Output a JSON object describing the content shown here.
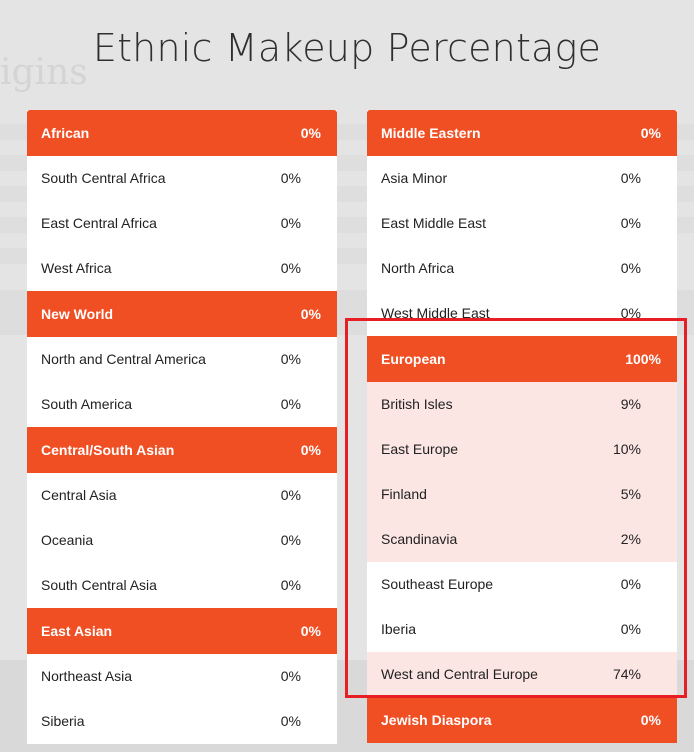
{
  "page": {
    "title": "Ethnic Makeup Percentage"
  },
  "background": {
    "ghost_heading": "igins"
  },
  "colors": {
    "accent": "#f04e23",
    "highlight_row": "#fbe6e3",
    "annotation_box": "#e81e25"
  },
  "left_column": [
    {
      "type": "header",
      "label": "African",
      "pct": "0%"
    },
    {
      "type": "item",
      "label": "South Central Africa",
      "pct": "0%"
    },
    {
      "type": "item",
      "label": "East Central Africa",
      "pct": "0%"
    },
    {
      "type": "item",
      "label": "West Africa",
      "pct": "0%"
    },
    {
      "type": "header",
      "label": "New World",
      "pct": "0%"
    },
    {
      "type": "item",
      "label": "North and Central America",
      "pct": "0%"
    },
    {
      "type": "item",
      "label": "South America",
      "pct": "0%"
    },
    {
      "type": "header",
      "label": "Central/South Asian",
      "pct": "0%"
    },
    {
      "type": "item",
      "label": "Central Asia",
      "pct": "0%"
    },
    {
      "type": "item",
      "label": "Oceania",
      "pct": "0%"
    },
    {
      "type": "item",
      "label": "South Central Asia",
      "pct": "0%"
    },
    {
      "type": "header",
      "label": "East Asian",
      "pct": "0%"
    },
    {
      "type": "item",
      "label": "Northeast Asia",
      "pct": "0%"
    },
    {
      "type": "item",
      "label": "Siberia",
      "pct": "0%"
    }
  ],
  "right_column": [
    {
      "type": "header",
      "label": "Middle Eastern",
      "pct": "0%"
    },
    {
      "type": "item",
      "label": "Asia Minor",
      "pct": "0%"
    },
    {
      "type": "item",
      "label": "East Middle East",
      "pct": "0%"
    },
    {
      "type": "item",
      "label": "North Africa",
      "pct": "0%"
    },
    {
      "type": "item",
      "label": "West Middle East",
      "pct": "0%"
    },
    {
      "type": "header",
      "label": "European",
      "pct": "100%"
    },
    {
      "type": "item",
      "label": "British Isles",
      "pct": "9%",
      "highlight": true
    },
    {
      "type": "item",
      "label": "East Europe",
      "pct": "10%",
      "highlight": true
    },
    {
      "type": "item",
      "label": "Finland",
      "pct": "5%",
      "highlight": true
    },
    {
      "type": "item",
      "label": "Scandinavia",
      "pct": "2%",
      "highlight": true
    },
    {
      "type": "item",
      "label": "Southeast Europe",
      "pct": "0%"
    },
    {
      "type": "item",
      "label": "Iberia",
      "pct": "0%"
    },
    {
      "type": "item",
      "label": "West and Central Europe",
      "pct": "74%",
      "highlight": true
    },
    {
      "type": "header",
      "label": "Jewish Diaspora",
      "pct": "0%"
    }
  ]
}
